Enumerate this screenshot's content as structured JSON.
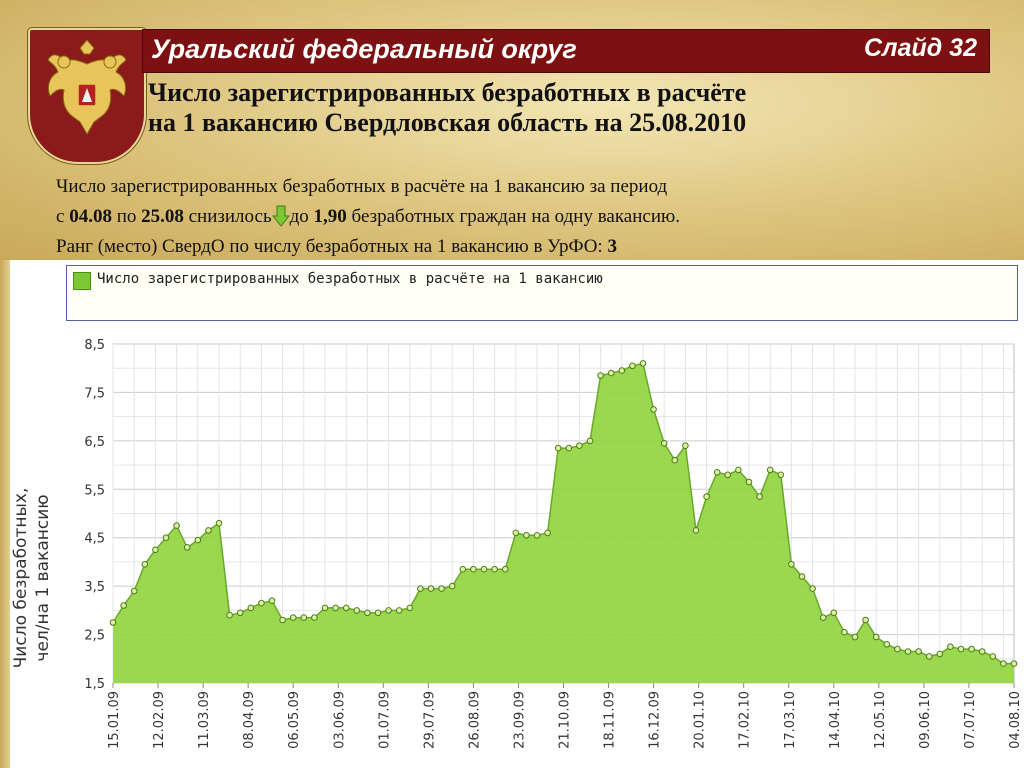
{
  "header": {
    "region_title": "Уральский федеральный округ",
    "slide_label": "Слайд 32",
    "subtitle_line1": "Число зарегистрированных безработных в расчёте",
    "subtitle_line2": "на 1 вакансию Свердловская область на 25.08.2010"
  },
  "description": {
    "line1": "Число зарегистрированных безработных в расчёте на 1 вакансию за период",
    "l2_prefix": "с ",
    "date_from": "04.08",
    "l2_mid": " по ",
    "date_to": "25.08",
    "l2_trend": " снизилось",
    "l2_to": "до ",
    "value": "1,90",
    "l2_suffix": " безработных граждан на одну вакансию.",
    "line3_prefix": "Ранг (место) СвердО по числу безработных на 1 вакансию в УрФО: ",
    "rank": "3"
  },
  "colors": {
    "title_bar": "#7d1010",
    "area_fill": "#8fd43c",
    "area_line": "#6aa82a",
    "marker": "#d9f0a0"
  },
  "chart_data": {
    "type": "area",
    "legend": "Число зарегистрированных безработных в расчёте на 1 вакансию",
    "ylabel_line1": "Число безработных,",
    "ylabel_line2": "чел/на 1 вакансию",
    "ylim": [
      1.5,
      8.5
    ],
    "yticks": [
      "8,5",
      "7,5",
      "6,5",
      "5,5",
      "4,5",
      "3,5",
      "2,5",
      "1,5"
    ],
    "xtick_labels": [
      "15.01.09",
      "12.02.09",
      "11.03.09",
      "08.04.09",
      "06.05.09",
      "03.06.09",
      "01.07.09",
      "29.07.09",
      "26.08.09",
      "23.09.09",
      "21.10.09",
      "18.11.09",
      "16.12.09",
      "20.01.10",
      "17.02.10",
      "17.03.10",
      "14.04.10",
      "12.05.10",
      "09.06.10",
      "07.07.10",
      "04.08.10"
    ],
    "grid": true,
    "values": [
      2.75,
      3.1,
      3.4,
      3.95,
      4.25,
      4.5,
      4.75,
      4.3,
      4.45,
      4.65,
      4.8,
      2.9,
      2.95,
      3.05,
      3.15,
      3.2,
      2.8,
      2.85,
      2.85,
      2.85,
      3.05,
      3.05,
      3.05,
      3.0,
      2.95,
      2.95,
      3.0,
      3.0,
      3.05,
      3.45,
      3.45,
      3.45,
      3.5,
      3.85,
      3.85,
      3.85,
      3.85,
      3.85,
      4.6,
      4.55,
      4.55,
      4.6,
      6.35,
      6.35,
      6.4,
      6.5,
      7.85,
      7.9,
      7.95,
      8.05,
      8.1,
      7.15,
      6.45,
      6.1,
      6.4,
      4.65,
      5.35,
      5.85,
      5.8,
      5.9,
      5.65,
      5.35,
      5.9,
      5.8,
      3.95,
      3.7,
      3.45,
      2.85,
      2.95,
      2.55,
      2.45,
      2.8,
      2.45,
      2.3,
      2.2,
      2.15,
      2.15,
      2.05,
      2.1,
      2.25,
      2.2,
      2.2,
      2.15,
      2.05,
      1.9,
      1.9
    ]
  }
}
